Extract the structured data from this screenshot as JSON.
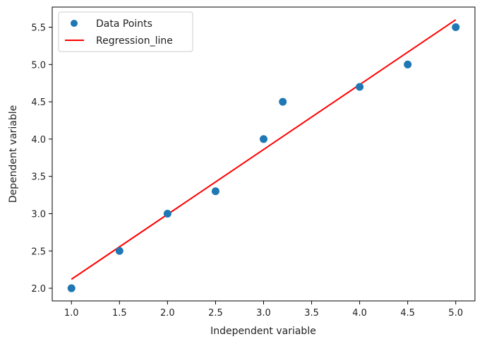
{
  "chart_data": {
    "type": "scatter",
    "title": "",
    "xlabel": "Independent variable",
    "ylabel": "Dependent variable",
    "xlim": [
      0.8,
      5.2
    ],
    "ylim": [
      1.83,
      5.77
    ],
    "x_ticks": [
      "1.0",
      "1.5",
      "2.0",
      "2.5",
      "3.0",
      "3.5",
      "4.0",
      "4.5",
      "5.0"
    ],
    "y_ticks": [
      "2.0",
      "2.5",
      "3.0",
      "3.5",
      "4.0",
      "4.5",
      "5.0",
      "5.5"
    ],
    "grid": false,
    "legend": {
      "placement": "top-left",
      "entries": [
        "Data Points",
        "Regression_line"
      ]
    },
    "series": [
      {
        "name": "Data Points",
        "kind": "scatter",
        "color": "#1f77b4",
        "x": [
          1.0,
          1.5,
          2.0,
          2.5,
          3.0,
          3.2,
          4.0,
          4.5,
          5.0
        ],
        "y": [
          2.0,
          2.5,
          3.0,
          3.3,
          4.0,
          4.5,
          4.7,
          5.0,
          5.5
        ]
      },
      {
        "name": "Regression_line",
        "kind": "line",
        "color": "#ff0000",
        "x": [
          1.0,
          5.0
        ],
        "y": [
          2.12,
          5.6
        ]
      }
    ]
  }
}
